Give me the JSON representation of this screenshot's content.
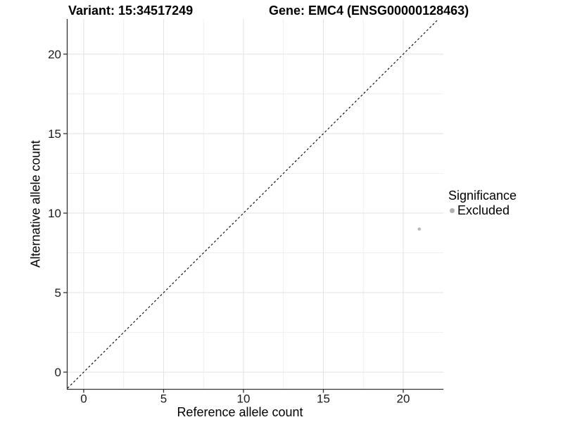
{
  "header": {
    "variant_title": "Variant: 15:34517249",
    "gene_title": "Gene: EMC4 (ENSG00000128463)"
  },
  "chart_data": {
    "type": "scatter",
    "xlabel": "Reference allele count",
    "ylabel": "Alternative allele count",
    "xlim": [
      -1.01,
      22.51
    ],
    "ylim": [
      -1.08,
      22.21
    ],
    "x_ticks": [
      0,
      5,
      10,
      15,
      20
    ],
    "y_ticks": [
      0,
      5,
      10,
      15,
      20
    ],
    "x_minor_ticks": [
      2.5,
      7.5,
      12.5,
      17.5
    ],
    "y_minor_ticks": [
      2.5,
      7.5,
      12.5,
      17.5
    ],
    "grid": "major+minor",
    "legend_position": "right",
    "identity_line": {
      "equation": "y = x",
      "style": "dashed",
      "color": "#000000"
    },
    "series": [
      {
        "name": "Excluded",
        "color": "#b8b8b8",
        "points": [
          {
            "x": 21,
            "y": 9
          }
        ]
      }
    ],
    "point_radius": 2.3
  },
  "legend": {
    "title": "Significance",
    "items": [
      {
        "label": "Excluded",
        "color": "#b0b0b0",
        "marker": "circle"
      }
    ]
  },
  "colors": {
    "background": "#ffffff",
    "axis_line": "#333333",
    "tick_mark": "#333333",
    "tick_label": "#1a1a1a",
    "grid_major": "#e2e2e2",
    "grid_minor": "#efefef"
  }
}
